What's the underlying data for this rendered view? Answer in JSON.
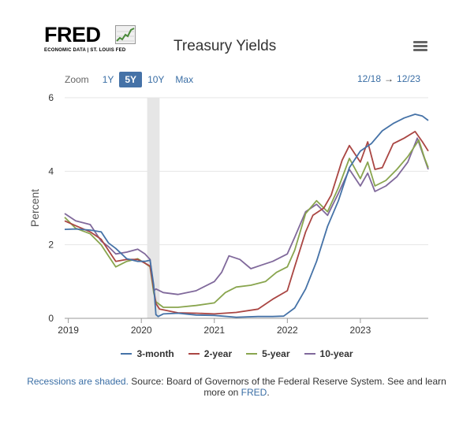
{
  "logo": {
    "word": "FRED",
    "sub": "ECONOMIC DATA | ST. LOUIS FED"
  },
  "header": {
    "title": "Treasury Yields",
    "menu_icon": "hamburger-icon"
  },
  "zoom": {
    "label": "Zoom",
    "buttons": [
      "1Y",
      "5Y",
      "10Y",
      "Max"
    ],
    "active": "5Y"
  },
  "range": {
    "start": "12/18",
    "arrow": "→",
    "end": "12/23"
  },
  "footer": {
    "link1": "Recessions are shaded.",
    "text": " Source: Board of Governors of the Federal Reserve System. See and learn more on ",
    "link2": "FRED",
    "end": "."
  },
  "chart_data": {
    "type": "line",
    "title": "Treasury Yields",
    "ylabel": "Percent",
    "xlabel": "",
    "ylim": [
      0,
      6
    ],
    "xlim": [
      2018.95,
      2023.93
    ],
    "y_ticks": [
      0,
      2,
      4,
      6
    ],
    "x_ticks": [
      "2019",
      "2020",
      "2021",
      "2022",
      "2023"
    ],
    "x_tick_values": [
      2019,
      2020,
      2021,
      2022,
      2023
    ],
    "grid": true,
    "legend": "bottom-center",
    "recessions": [
      [
        2020.08,
        2020.25
      ]
    ],
    "series": [
      {
        "name": "3-month",
        "color": "#4572a7",
        "x": [
          2018.95,
          2019.1,
          2019.3,
          2019.45,
          2019.55,
          2019.65,
          2019.8,
          2019.95,
          2020.05,
          2020.12,
          2020.17,
          2020.2,
          2020.23,
          2020.3,
          2020.5,
          2020.75,
          2021.0,
          2021.3,
          2021.6,
          2021.8,
          2021.95,
          2022.1,
          2022.25,
          2022.4,
          2022.55,
          2022.7,
          2022.85,
          2023.0,
          2023.15,
          2023.3,
          2023.45,
          2023.6,
          2023.75,
          2023.85,
          2023.93
        ],
        "y": [
          2.42,
          2.43,
          2.4,
          2.35,
          2.05,
          1.9,
          1.62,
          1.55,
          1.55,
          1.58,
          0.9,
          0.1,
          0.05,
          0.12,
          0.14,
          0.09,
          0.08,
          0.03,
          0.05,
          0.05,
          0.06,
          0.28,
          0.8,
          1.55,
          2.5,
          3.2,
          4.1,
          4.55,
          4.75,
          5.1,
          5.3,
          5.45,
          5.55,
          5.5,
          5.38
        ]
      },
      {
        "name": "2-year",
        "color": "#aa4643",
        "x": [
          2018.95,
          2019.1,
          2019.3,
          2019.45,
          2019.55,
          2019.65,
          2019.8,
          2019.95,
          2020.05,
          2020.12,
          2020.17,
          2020.2,
          2020.25,
          2020.5,
          2020.75,
          2021.0,
          2021.3,
          2021.6,
          2021.8,
          2022.0,
          2022.1,
          2022.25,
          2022.35,
          2022.5,
          2022.6,
          2022.75,
          2022.85,
          2023.0,
          2023.1,
          2023.2,
          2023.3,
          2023.45,
          2023.6,
          2023.75,
          2023.85,
          2023.93
        ],
        "y": [
          2.65,
          2.52,
          2.35,
          2.15,
          1.85,
          1.55,
          1.6,
          1.6,
          1.5,
          1.42,
          0.8,
          0.4,
          0.25,
          0.15,
          0.14,
          0.12,
          0.16,
          0.25,
          0.52,
          0.75,
          1.4,
          2.35,
          2.8,
          3.0,
          3.35,
          4.3,
          4.7,
          4.25,
          4.8,
          4.05,
          4.1,
          4.75,
          4.9,
          5.08,
          4.8,
          4.55
        ]
      },
      {
        "name": "5-year",
        "color": "#89a54e",
        "x": [
          2018.95,
          2019.1,
          2019.3,
          2019.45,
          2019.55,
          2019.65,
          2019.8,
          2019.95,
          2020.05,
          2020.12,
          2020.17,
          2020.2,
          2020.3,
          2020.5,
          2020.75,
          2021.0,
          2021.15,
          2021.3,
          2021.5,
          2021.7,
          2021.85,
          2022.0,
          2022.1,
          2022.25,
          2022.4,
          2022.55,
          2022.7,
          2022.85,
          2023.0,
          2023.1,
          2023.2,
          2023.35,
          2023.5,
          2023.65,
          2023.8,
          2023.88,
          2023.93
        ],
        "y": [
          2.75,
          2.45,
          2.3,
          2.0,
          1.7,
          1.4,
          1.55,
          1.62,
          1.5,
          1.4,
          0.7,
          0.45,
          0.3,
          0.3,
          0.35,
          0.42,
          0.7,
          0.85,
          0.9,
          1.0,
          1.25,
          1.4,
          1.85,
          2.85,
          3.2,
          2.9,
          3.55,
          4.35,
          3.8,
          4.25,
          3.6,
          3.75,
          4.05,
          4.4,
          4.85,
          4.35,
          4.1
        ]
      },
      {
        "name": "10-year",
        "color": "#80699b",
        "x": [
          2018.95,
          2019.1,
          2019.3,
          2019.45,
          2019.55,
          2019.65,
          2019.8,
          2019.95,
          2020.05,
          2020.12,
          2020.17,
          2020.2,
          2020.3,
          2020.5,
          2020.75,
          2021.0,
          2021.1,
          2021.2,
          2021.35,
          2021.5,
          2021.65,
          2021.8,
          2022.0,
          2022.1,
          2022.25,
          2022.4,
          2022.55,
          2022.7,
          2022.85,
          2023.0,
          2023.1,
          2023.2,
          2023.35,
          2023.5,
          2023.65,
          2023.78,
          2023.85,
          2023.93
        ],
        "y": [
          2.85,
          2.65,
          2.55,
          2.1,
          1.95,
          1.75,
          1.8,
          1.88,
          1.75,
          1.6,
          0.75,
          0.8,
          0.7,
          0.65,
          0.75,
          1.0,
          1.25,
          1.7,
          1.6,
          1.35,
          1.45,
          1.55,
          1.75,
          2.2,
          2.9,
          3.1,
          2.8,
          3.4,
          4.05,
          3.6,
          3.95,
          3.45,
          3.6,
          3.85,
          4.25,
          4.9,
          4.5,
          4.05
        ]
      }
    ]
  }
}
